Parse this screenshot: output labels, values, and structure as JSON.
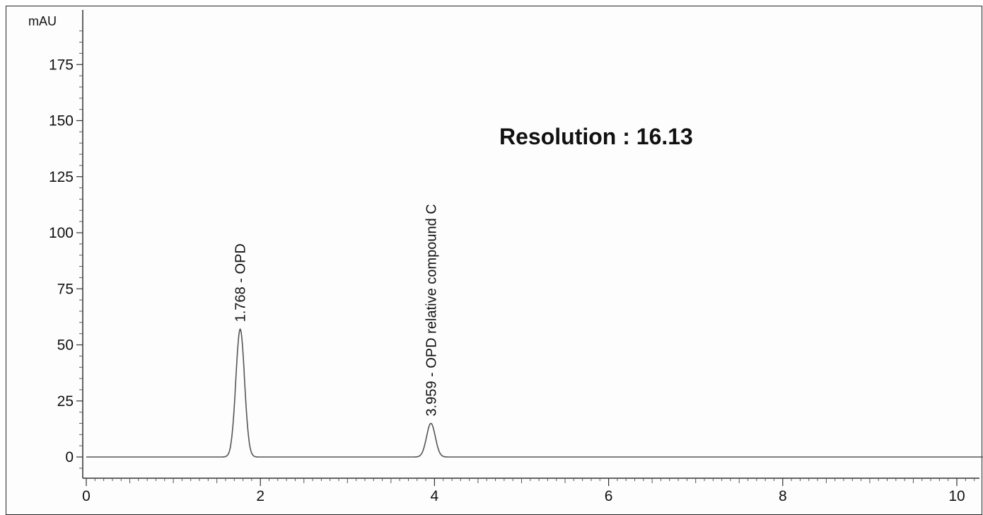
{
  "chart_data": {
    "type": "line",
    "y_unit": "mAU",
    "xlim": [
      0,
      10.3
    ],
    "ylim": [
      -10,
      195
    ],
    "x_ticks": [
      0,
      2,
      4,
      6,
      8,
      10
    ],
    "y_ticks": [
      0,
      25,
      50,
      75,
      100,
      125,
      150,
      175
    ],
    "peaks": [
      {
        "rt": 1.768,
        "height": 57,
        "width": 0.05,
        "label": "1.768 - OPD"
      },
      {
        "rt": 3.959,
        "height": 15,
        "width": 0.05,
        "label": "3.959 - OPD relative compound C"
      }
    ],
    "annotation": "Resolution : 16.13",
    "colors": {
      "trace": "#555555",
      "axis": "#333333",
      "text": "#111111"
    }
  }
}
